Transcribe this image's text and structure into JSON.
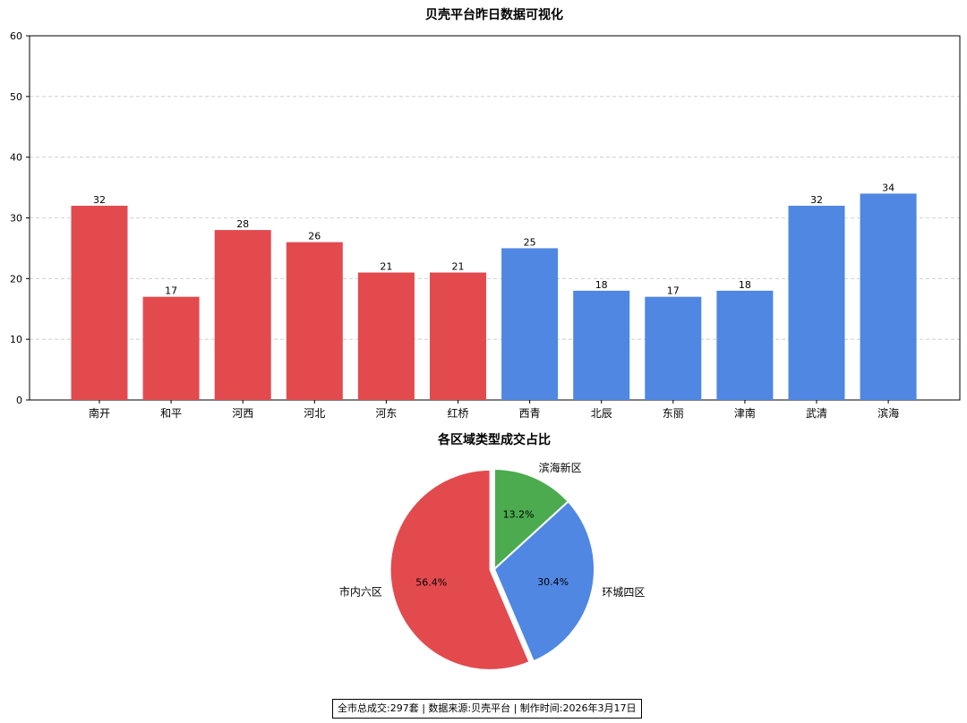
{
  "chart_data": [
    {
      "type": "bar",
      "title": "贝壳平台昨日数据可视化",
      "categories": [
        "南开",
        "和平",
        "河西",
        "河北",
        "河东",
        "红桥",
        "西青",
        "北辰",
        "东丽",
        "津南",
        "武清",
        "滨海"
      ],
      "values": [
        32,
        17,
        28,
        26,
        21,
        21,
        25,
        18,
        17,
        18,
        32,
        34
      ],
      "group_colors": [
        "#e34a4e",
        "#e34a4e",
        "#e34a4e",
        "#e34a4e",
        "#e34a4e",
        "#e34a4e",
        "#4f87e2",
        "#4f87e2",
        "#4f87e2",
        "#4f87e2",
        "#4f87e2",
        "#4f87e2"
      ],
      "ylim": [
        0,
        60
      ],
      "yticks": [
        0,
        10,
        20,
        30,
        40,
        50,
        60
      ],
      "grid": "horizontal dashed",
      "data_labels": true
    },
    {
      "type": "pie",
      "title": "各区域类型成交占比",
      "labels": [
        "市内六区",
        "环城四区",
        "滨海新区"
      ],
      "values": [
        56.4,
        30.4,
        13.2
      ],
      "value_labels": [
        "56.4%",
        "30.4%",
        "13.2%"
      ],
      "colors": [
        "#e34a4e",
        "#4f87e2",
        "#4cab4f"
      ],
      "exploded": [
        "市内六区"
      ]
    }
  ],
  "footer": "全市总成交:297套 | 数据来源:贝壳平台 | 制作时间:2026年3月17日"
}
